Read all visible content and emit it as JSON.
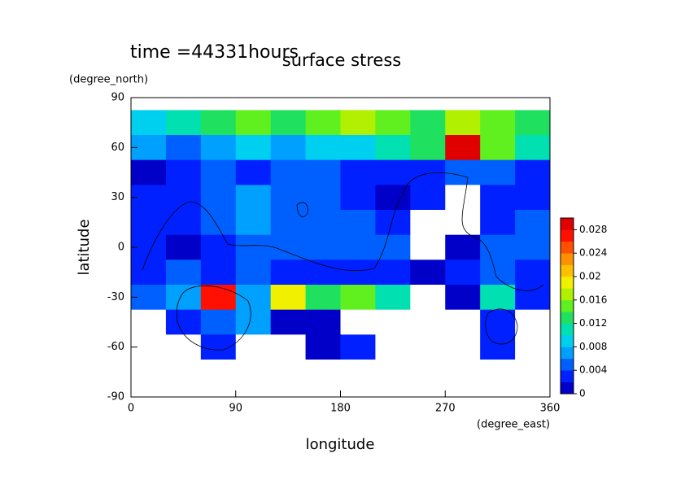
{
  "chart_data": {
    "type": "heatmap",
    "title": "surface stress",
    "subtitle": "time =44331hours",
    "x_label": "longitude",
    "x_unit": "(degree_east)",
    "y_label": "latitude",
    "y_unit": "(degree_north)",
    "x": [
      15,
      45,
      75,
      105,
      135,
      165,
      195,
      225,
      255,
      285,
      315,
      345
    ],
    "y": [
      75,
      60,
      45,
      30,
      15,
      0,
      -15,
      -30,
      -45,
      -60,
      -75
    ],
    "values": [
      [
        0.01,
        0.012,
        0.014,
        0.016,
        0.014,
        0.016,
        0.018,
        0.016,
        0.014,
        0.018,
        0.016,
        0.014
      ],
      [
        0.008,
        0.006,
        0.008,
        0.01,
        0.008,
        0.01,
        0.01,
        0.012,
        0.014,
        0.03,
        0.016,
        0.012
      ],
      [
        0.002,
        0.004,
        0.006,
        0.004,
        0.006,
        0.006,
        0.004,
        0.004,
        0.004,
        0.006,
        0.006,
        0.004
      ],
      [
        0.004,
        0.004,
        0.006,
        0.008,
        0.006,
        0.006,
        0.004,
        0.002,
        0.004,
        0,
        0.004,
        0.004
      ],
      [
        0.004,
        0.004,
        0.006,
        0.008,
        0.006,
        0.006,
        0.006,
        0.004,
        0,
        0,
        0.004,
        0.006
      ],
      [
        0.004,
        0.002,
        0.004,
        0.006,
        0.006,
        0.006,
        0.006,
        0.006,
        0,
        0.002,
        0.006,
        0.006
      ],
      [
        0.004,
        0.006,
        0.004,
        0.006,
        0.004,
        0.004,
        0.004,
        0.004,
        0.002,
        0.004,
        0.006,
        0.004
      ],
      [
        0.006,
        0.008,
        0.028,
        0.008,
        0.02,
        0.014,
        0.016,
        0.012,
        0,
        0.002,
        0.012,
        0.004
      ],
      [
        0,
        0.004,
        0.006,
        0.008,
        0.002,
        0.002,
        0,
        0,
        0,
        0,
        0.004,
        0
      ],
      [
        0,
        0,
        0.004,
        0,
        0,
        0.002,
        0.004,
        0,
        0,
        0,
        0.004,
        0
      ],
      [
        0,
        0,
        0,
        0,
        0,
        0,
        0,
        0,
        0,
        0,
        0,
        0
      ]
    ],
    "xlim": [
      0,
      360
    ],
    "xticks": [
      0,
      90,
      180,
      270,
      360
    ],
    "ylim": [
      -90,
      90
    ],
    "yticks": [
      -90,
      -60,
      -30,
      0,
      30,
      60,
      90
    ],
    "clim": [
      0,
      0.03
    ],
    "cticks": [
      0,
      0.004,
      0.008,
      0.012,
      0.016,
      0.02,
      0.024,
      0.028
    ],
    "colormap": [
      "#ffffff",
      "#0000c8",
      "#0020ff",
      "#0060ff",
      "#00a0ff",
      "#00d0f0",
      "#00e0b0",
      "#20e060",
      "#60f020",
      "#b0f000",
      "#f0f000",
      "#ffc000",
      "#ff9000",
      "#ff5000",
      "#ff1000",
      "#e00000"
    ]
  }
}
